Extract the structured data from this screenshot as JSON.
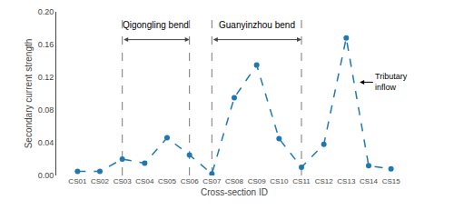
{
  "chart_data": {
    "type": "line",
    "categories": [
      "CS01",
      "CS02",
      "CS03",
      "CS04",
      "CS05",
      "CS06",
      "CS07",
      "CS08",
      "CS09",
      "CS10",
      "CS11",
      "CS12",
      "CS13",
      "CS14",
      "CS15"
    ],
    "values": [
      0.005,
      0.005,
      0.02,
      0.015,
      0.046,
      0.025,
      0.002,
      0.095,
      0.135,
      0.045,
      0.01,
      0.038,
      0.168,
      0.012,
      0.008
    ],
    "marker": "circle",
    "line_style": "dashed",
    "x_label": "Cross-section ID",
    "y_label": "Secondary current strength",
    "ylim": [
      0.0,
      0.2
    ],
    "yticks": [
      {
        "value": 0.0,
        "label": "0.00"
      },
      0.04,
      0.08,
      0.12,
      0.16,
      {
        "value": 0.2,
        "label": "0.20"
      }
    ],
    "grid": false,
    "annotations": [
      {
        "text": "Qigongling bend",
        "x_start": "CS03",
        "x_end": "CS06"
      },
      {
        "text": "Guanyinzhou bend",
        "x_start": "CS07",
        "x_end": "CS11"
      },
      {
        "text": "Tributary\ninflow",
        "x": "CS13"
      }
    ]
  }
}
